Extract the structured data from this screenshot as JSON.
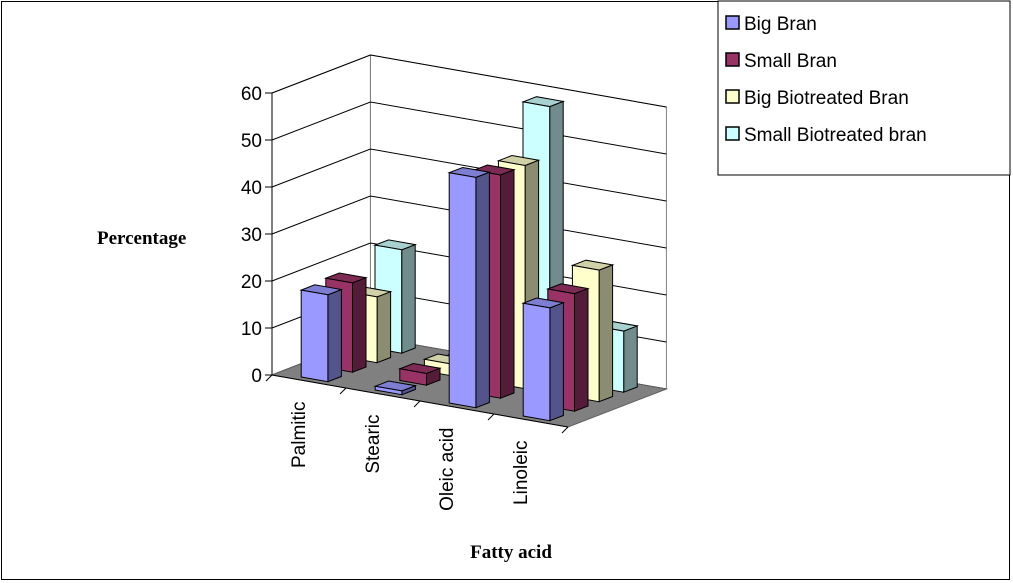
{
  "chart_data": {
    "type": "bar",
    "style": "3d-clustered-column",
    "xlabel": "Fatty acid",
    "ylabel": "Percentage",
    "ylim": [
      0,
      60
    ],
    "yticks": [
      0,
      10,
      20,
      30,
      40,
      50,
      60
    ],
    "grid": true,
    "legend_position": "top-right",
    "categories": [
      "Palmitic",
      "Stearic",
      "Oleic acid",
      "Linoleic"
    ],
    "series": [
      {
        "name": "Big Bran",
        "values": [
          18.5,
          0.8,
          49,
          24
        ],
        "color": "#9999ff"
      },
      {
        "name": "Small Bran",
        "values": [
          19,
          2.5,
          47.5,
          25
        ],
        "color": "#993366"
      },
      {
        "name": "Big Biotreated Bran",
        "values": [
          14,
          2.5,
          47.5,
          28
        ],
        "color": "#ffffcc"
      },
      {
        "name": "Small Biotreated bran",
        "values": [
          22,
          1.5,
          58,
          13
        ],
        "color": "#ccffff"
      }
    ],
    "floor_color": "#808080"
  }
}
